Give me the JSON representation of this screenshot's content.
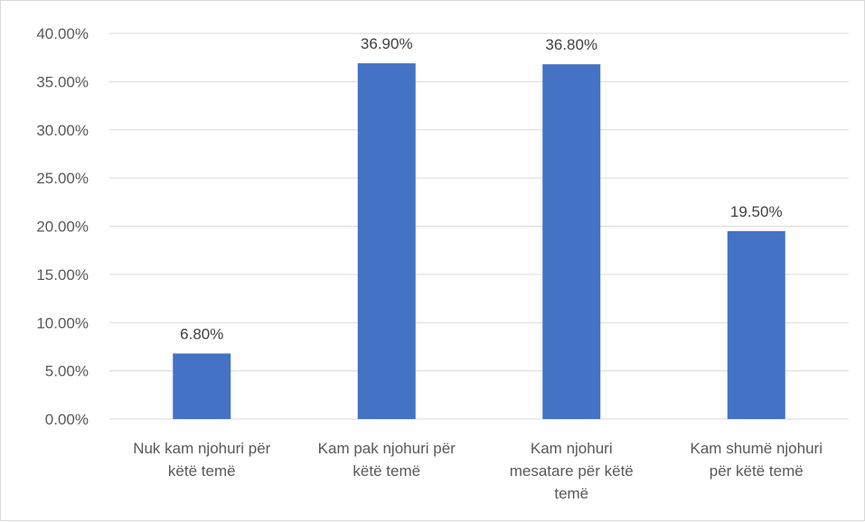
{
  "chart_data": {
    "type": "bar",
    "categories": [
      [
        "Nuk kam njohuri për",
        "këtë temë"
      ],
      [
        "Kam pak njohuri për",
        "këtë temë"
      ],
      [
        "Kam njohuri",
        "mesatare për këtë",
        "temë"
      ],
      [
        "Kam shumë njohuri",
        "për këtë temë"
      ]
    ],
    "values": [
      6.8,
      36.9,
      36.8,
      19.5
    ],
    "data_labels": [
      "6.80%",
      "36.90%",
      "36.80%",
      "19.50%"
    ],
    "y_ticks": [
      "0.00%",
      "5.00%",
      "10.00%",
      "15.00%",
      "20.00%",
      "25.00%",
      "30.00%",
      "35.00%",
      "40.00%"
    ],
    "ylim": [
      0,
      40
    ],
    "grid": true,
    "legend": "none",
    "bar_color": "#4472C4",
    "grid_color": "#d9d9d9"
  }
}
